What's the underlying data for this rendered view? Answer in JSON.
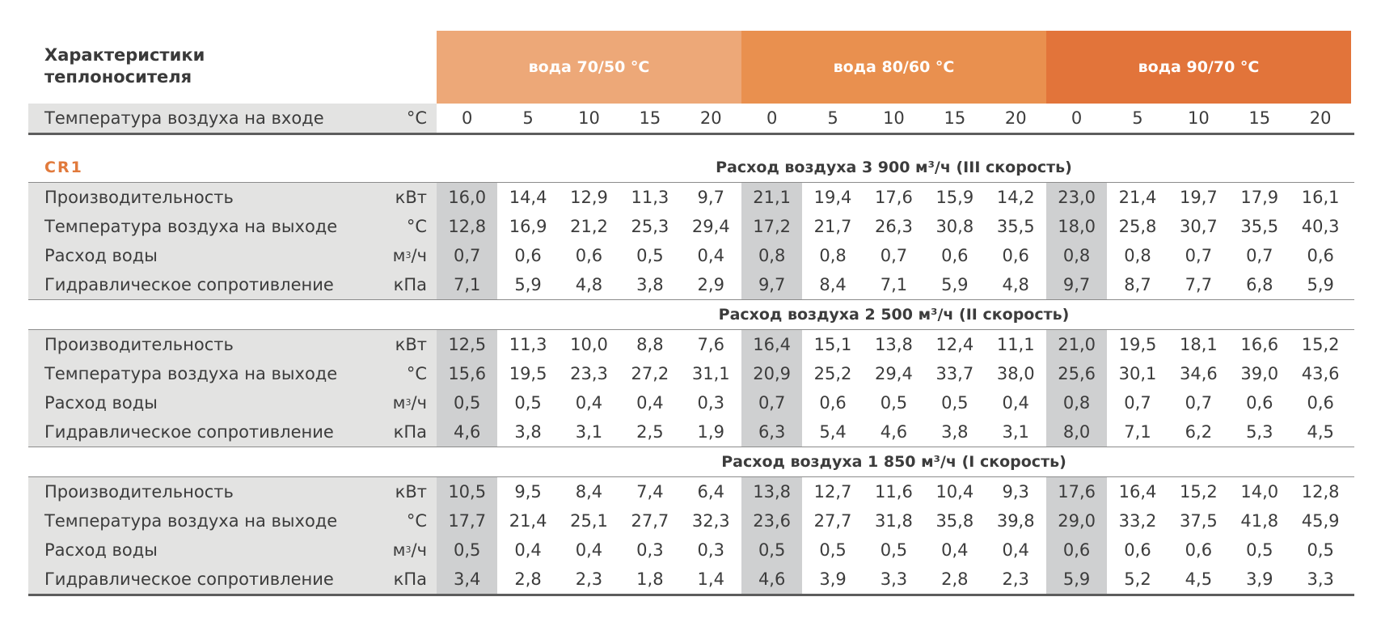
{
  "header": {
    "title_line1": "Характеристики",
    "title_line2": "теплоносителя",
    "groups": [
      {
        "label": "вода 70/50 °C",
        "color": "#eda878"
      },
      {
        "label": "вода 80/60 °C",
        "color": "#e9904f"
      },
      {
        "label": "вода 90/70 °C",
        "color": "#e2743a"
      }
    ]
  },
  "inlet": {
    "label": "Температура воздуха на входе",
    "unit": "°C",
    "values": [
      "0",
      "5",
      "10",
      "15",
      "20",
      "0",
      "5",
      "10",
      "15",
      "20",
      "0",
      "5",
      "10",
      "15",
      "20"
    ]
  },
  "model": "CR1",
  "sections": [
    {
      "title": "Расход воздуха 3 900 м³/ч (III скорость)",
      "rows": [
        {
          "label": "Производительность",
          "unit": "кВт",
          "values": [
            "16,0",
            "14,4",
            "12,9",
            "11,3",
            "9,7",
            "21,1",
            "19,4",
            "17,6",
            "15,9",
            "14,2",
            "23,0",
            "21,4",
            "19,7",
            "17,9",
            "16,1"
          ]
        },
        {
          "label": "Температура воздуха на выходе",
          "unit": "°C",
          "values": [
            "12,8",
            "16,9",
            "21,2",
            "25,3",
            "29,4",
            "17,2",
            "21,7",
            "26,3",
            "30,8",
            "35,5",
            "18,0",
            "25,8",
            "30,7",
            "35,5",
            "40,3"
          ]
        },
        {
          "label": "Расход воды",
          "unit": "м³/ч",
          "values": [
            "0,7",
            "0,6",
            "0,6",
            "0,5",
            "0,4",
            "0,8",
            "0,8",
            "0,7",
            "0,6",
            "0,6",
            "0,8",
            "0,8",
            "0,7",
            "0,7",
            "0,6"
          ]
        },
        {
          "label": "Гидравлическое сопротивление",
          "unit": "кПа",
          "values": [
            "7,1",
            "5,9",
            "4,8",
            "3,8",
            "2,9",
            "9,7",
            "8,4",
            "7,1",
            "5,9",
            "4,8",
            "9,7",
            "8,7",
            "7,7",
            "6,8",
            "5,9"
          ]
        }
      ]
    },
    {
      "title": "Расход воздуха 2 500 м³/ч (II скорость)",
      "rows": [
        {
          "label": "Производительность",
          "unit": "кВт",
          "values": [
            "12,5",
            "11,3",
            "10,0",
            "8,8",
            "7,6",
            "16,4",
            "15,1",
            "13,8",
            "12,4",
            "11,1",
            "21,0",
            "19,5",
            "18,1",
            "16,6",
            "15,2"
          ]
        },
        {
          "label": "Температура воздуха на выходе",
          "unit": "°C",
          "values": [
            "15,6",
            "19,5",
            "23,3",
            "27,2",
            "31,1",
            "20,9",
            "25,2",
            "29,4",
            "33,7",
            "38,0",
            "25,6",
            "30,1",
            "34,6",
            "39,0",
            "43,6"
          ]
        },
        {
          "label": "Расход воды",
          "unit": "м³/ч",
          "values": [
            "0,5",
            "0,5",
            "0,4",
            "0,4",
            "0,3",
            "0,7",
            "0,6",
            "0,5",
            "0,5",
            "0,4",
            "0,8",
            "0,7",
            "0,7",
            "0,6",
            "0,6"
          ]
        },
        {
          "label": "Гидравлическое сопротивление",
          "unit": "кПа",
          "values": [
            "4,6",
            "3,8",
            "3,1",
            "2,5",
            "1,9",
            "6,3",
            "5,4",
            "4,6",
            "3,8",
            "3,1",
            "8,0",
            "7,1",
            "6,2",
            "5,3",
            "4,5"
          ]
        }
      ]
    },
    {
      "title": "Расход воздуха 1 850 м³/ч (I скорость)",
      "rows": [
        {
          "label": "Производительность",
          "unit": "кВт",
          "values": [
            "10,5",
            "9,5",
            "8,4",
            "7,4",
            "6,4",
            "13,8",
            "12,7",
            "11,6",
            "10,4",
            "9,3",
            "17,6",
            "16,4",
            "15,2",
            "14,0",
            "12,8"
          ]
        },
        {
          "label": "Температура воздуха на выходе",
          "unit": "°C",
          "values": [
            "17,7",
            "21,4",
            "25,1",
            "27,7",
            "32,3",
            "23,6",
            "27,7",
            "31,8",
            "35,8",
            "39,8",
            "29,0",
            "33,2",
            "37,5",
            "41,8",
            "45,9"
          ]
        },
        {
          "label": "Расход воды",
          "unit": "м³/ч",
          "values": [
            "0,5",
            "0,4",
            "0,4",
            "0,3",
            "0,3",
            "0,5",
            "0,5",
            "0,5",
            "0,4",
            "0,4",
            "0,6",
            "0,6",
            "0,6",
            "0,5",
            "0,5"
          ]
        },
        {
          "label": "Гидравлическое сопротивление",
          "unit": "кПа",
          "values": [
            "3,4",
            "2,8",
            "2,3",
            "1,8",
            "1,4",
            "4,6",
            "3,9",
            "3,3",
            "2,8",
            "2,3",
            "5,9",
            "5,2",
            "4,5",
            "3,9",
            "3,3"
          ]
        }
      ]
    }
  ]
}
